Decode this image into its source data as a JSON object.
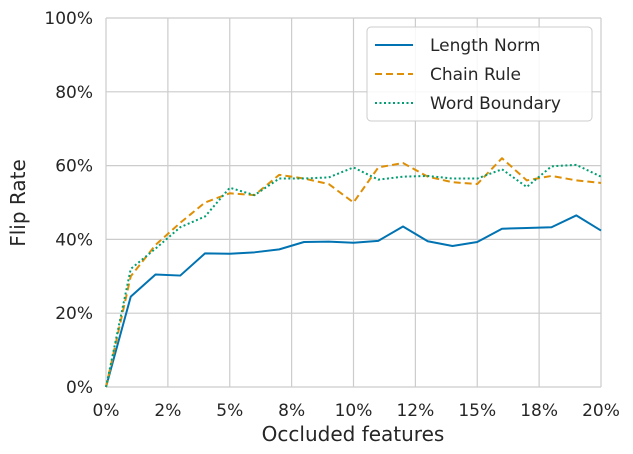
{
  "chart_data": {
    "type": "line",
    "xlabel": "Occluded features",
    "ylabel": "Flip Rate",
    "xlim": [
      0,
      0.2
    ],
    "ylim": [
      0,
      1.0
    ],
    "x_ticks": [
      0,
      0.025,
      0.05,
      0.075,
      0.1,
      0.125,
      0.15,
      0.175,
      0.2
    ],
    "x_tick_labels": [
      "0%",
      "2%",
      "5%",
      "8%",
      "10%",
      "12%",
      "15%",
      "18%",
      "20%"
    ],
    "y_ticks": [
      0,
      0.2,
      0.4,
      0.6,
      0.8,
      1.0
    ],
    "y_tick_labels": [
      "0%",
      "20%",
      "40%",
      "60%",
      "80%",
      "100%"
    ],
    "grid": true,
    "legend_position": "top-right",
    "x": [
      0,
      0.01,
      0.02,
      0.03,
      0.04,
      0.05,
      0.06,
      0.07,
      0.08,
      0.09,
      0.1,
      0.11,
      0.12,
      0.13,
      0.14,
      0.15,
      0.16,
      0.17,
      0.18,
      0.19,
      0.2
    ],
    "series": [
      {
        "name": "Length Norm",
        "color": "#0173b2",
        "dash": "solid",
        "values": [
          0.0,
          0.245,
          0.305,
          0.302,
          0.362,
          0.361,
          0.365,
          0.373,
          0.393,
          0.394,
          0.391,
          0.396,
          0.435,
          0.395,
          0.382,
          0.393,
          0.429,
          0.431,
          0.433,
          0.465,
          0.424
        ]
      },
      {
        "name": "Chain Rule",
        "color": "#de8f05",
        "dash": "dashed",
        "values": [
          0.0,
          0.3,
          0.385,
          0.445,
          0.5,
          0.525,
          0.52,
          0.575,
          0.565,
          0.55,
          0.5,
          0.595,
          0.607,
          0.57,
          0.555,
          0.55,
          0.62,
          0.56,
          0.572,
          0.56,
          0.553
        ]
      },
      {
        "name": "Word Boundary",
        "color": "#029e73",
        "dash": "dotted",
        "values": [
          0.0,
          0.32,
          0.375,
          0.433,
          0.462,
          0.54,
          0.52,
          0.565,
          0.565,
          0.568,
          0.595,
          0.562,
          0.57,
          0.572,
          0.565,
          0.565,
          0.59,
          0.542,
          0.598,
          0.602,
          0.57
        ]
      }
    ]
  }
}
